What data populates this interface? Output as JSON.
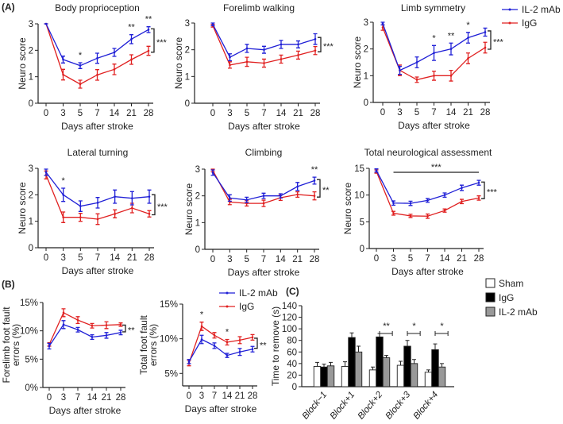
{
  "panel_labels": [
    "(A)",
    "(B)",
    "(C)"
  ],
  "colors": {
    "il2": "#1f1fd6",
    "igg": "#e02020",
    "sham": "#ffffff",
    "igg_bar": "#000000",
    "il2_bar": "#999999"
  },
  "chart_data": [
    {
      "type": "line",
      "panel": "A",
      "title": "Body proprioception",
      "xlabel": "Days after stroke",
      "ylabel": "Neuro score",
      "categories": [
        "0",
        "3",
        "5",
        "7",
        "14",
        "21",
        "28"
      ],
      "ylim": [
        0,
        3
      ],
      "yticks": [
        "0",
        "1",
        "2",
        "3"
      ],
      "series": [
        {
          "name": "IL-2 mAb",
          "values": [
            3,
            1.65,
            1.42,
            1.7,
            1.92,
            2.42,
            2.78
          ],
          "err": [
            0,
            0.13,
            0.11,
            0.19,
            0.15,
            0.17,
            0.11
          ]
        },
        {
          "name": "IgG",
          "values": [
            3,
            1.08,
            0.72,
            1.07,
            1.28,
            1.65,
            1.98
          ],
          "err": [
            0,
            0.2,
            0.15,
            0.2,
            0.2,
            0.18,
            0.17
          ]
        }
      ],
      "stars": [
        {
          "at": "5",
          "text": "*"
        },
        {
          "at": "21",
          "text": "**"
        },
        {
          "at": "28",
          "text": "**"
        }
      ],
      "bracket": "***"
    },
    {
      "type": "line",
      "panel": "A",
      "title": "Forelimb walking",
      "xlabel": "Days after stroke",
      "ylabel": "Neuro score",
      "categories": [
        "0",
        "3",
        "5",
        "7",
        "14",
        "21",
        "28"
      ],
      "ylim": [
        0,
        3
      ],
      "yticks": [
        "0",
        "1",
        "2",
        "3"
      ],
      "series": [
        {
          "name": "IL-2 mAb",
          "values": [
            2.95,
            1.72,
            2.05,
            2.0,
            2.2,
            2.2,
            2.4
          ],
          "err": [
            0.05,
            0.13,
            0.15,
            0.13,
            0.15,
            0.13,
            0.2
          ]
        },
        {
          "name": "IgG",
          "values": [
            2.9,
            1.43,
            1.55,
            1.5,
            1.65,
            1.8,
            1.97
          ],
          "err": [
            0.05,
            0.12,
            0.17,
            0.15,
            0.15,
            0.15,
            0.15
          ]
        }
      ],
      "stars": [],
      "bracket": "***"
    },
    {
      "type": "line",
      "panel": "A",
      "title": "Limb symmetry",
      "xlabel": "Days after stroke",
      "ylabel": "Neuro score",
      "categories": [
        "0",
        "3",
        "5",
        "7",
        "14",
        "21",
        "28"
      ],
      "ylim": [
        0,
        3
      ],
      "yticks": [
        "0",
        "1",
        "2",
        "3"
      ],
      "series": [
        {
          "name": "IL-2 mAb",
          "values": [
            2.95,
            1.2,
            1.5,
            1.85,
            2.0,
            2.42,
            2.63
          ],
          "err": [
            0.05,
            0.15,
            0.2,
            0.28,
            0.22,
            0.2,
            0.15
          ]
        },
        {
          "name": "IgG",
          "values": [
            2.8,
            1.2,
            0.85,
            1.0,
            1.0,
            1.65,
            2.05
          ],
          "err": [
            0.1,
            0.2,
            0.1,
            0.17,
            0.2,
            0.2,
            0.2
          ]
        }
      ],
      "stars": [
        {
          "at": "7",
          "text": "*"
        },
        {
          "at": "14",
          "text": "**"
        },
        {
          "at": "21",
          "text": "*"
        }
      ],
      "bracket": "***"
    },
    {
      "type": "line",
      "panel": "A",
      "title": "Lateral turning",
      "xlabel": "Days after stroke",
      "ylabel": "Neuro score",
      "categories": [
        "0",
        "3",
        "5",
        "7",
        "14",
        "21",
        "28"
      ],
      "ylim": [
        0,
        3
      ],
      "yticks": [
        "0",
        "1",
        "2",
        "3"
      ],
      "series": [
        {
          "name": "IL-2 mAb",
          "values": [
            2.85,
            2.0,
            1.57,
            1.7,
            1.93,
            1.87,
            1.93
          ],
          "err": [
            0.12,
            0.25,
            0.2,
            0.2,
            0.25,
            0.25,
            0.25
          ]
        },
        {
          "name": "IgG",
          "values": [
            2.75,
            1.15,
            1.15,
            1.08,
            1.28,
            1.5,
            1.28
          ],
          "err": [
            0.15,
            0.2,
            0.15,
            0.2,
            0.15,
            0.18,
            0.12
          ]
        }
      ],
      "stars": [
        {
          "at": "3",
          "text": "*"
        }
      ],
      "bracket": "***"
    },
    {
      "type": "line",
      "panel": "A",
      "title": "Climbing",
      "xlabel": "Days after stroke",
      "ylabel": "Neuro score",
      "categories": [
        "0",
        "3",
        "5",
        "7",
        "14",
        "21",
        "28"
      ],
      "ylim": [
        0,
        3
      ],
      "yticks": [
        "0",
        "1",
        "2",
        "3"
      ],
      "series": [
        {
          "name": "IL-2 mAb",
          "values": [
            2.87,
            1.92,
            1.85,
            2.0,
            2.0,
            2.35,
            2.57
          ],
          "err": [
            0.1,
            0.12,
            0.1,
            0.1,
            0.08,
            0.15,
            0.13
          ]
        },
        {
          "name": "IgG",
          "values": [
            2.95,
            1.77,
            1.72,
            1.72,
            1.93,
            2.05,
            2.0
          ],
          "err": [
            0.05,
            0.1,
            0.1,
            0.12,
            0.1,
            0.1,
            0.15
          ]
        }
      ],
      "stars": [
        {
          "at": "28",
          "text": "**"
        }
      ],
      "bracket": "**"
    },
    {
      "type": "line",
      "panel": "A",
      "title": "Total neurological assessment",
      "xlabel": "Days after stroke",
      "ylabel": "Neuro score",
      "categories": [
        "0",
        "3",
        "5",
        "7",
        "14",
        "21",
        "28"
      ],
      "ylim": [
        0,
        15
      ],
      "yticks": [
        "0",
        "5",
        "10",
        "15"
      ],
      "series": [
        {
          "name": "IL-2 mAb",
          "values": [
            14.6,
            8.5,
            8.45,
            9.0,
            10.0,
            11.35,
            12.3
          ],
          "err": [
            0.3,
            0.4,
            0.4,
            0.35,
            0.4,
            0.5,
            0.45
          ]
        },
        {
          "name": "IgG",
          "values": [
            14.4,
            6.6,
            6.1,
            6.05,
            7.1,
            8.8,
            9.45
          ],
          "err": [
            0.3,
            0.35,
            0.3,
            0.4,
            0.3,
            0.4,
            0.4
          ]
        }
      ],
      "stars": [],
      "bracket": "***",
      "span_bar": {
        "from": "3",
        "to": "28",
        "text": "***"
      }
    },
    {
      "type": "line",
      "panel": "B",
      "title": "",
      "xlabel": "Days after stroke",
      "ylabel": "Forelimb foot fault errors (%)",
      "categories": [
        "0",
        "3",
        "7",
        "14",
        "21",
        "28"
      ],
      "ylim": [
        0,
        15
      ],
      "yticks": [
        "0%",
        "5%",
        "10%",
        "15%"
      ],
      "ytickvals": [
        0,
        5,
        10,
        15
      ],
      "series": [
        {
          "name": "IL-2 mAb",
          "values": [
            7.3,
            11.1,
            10.2,
            8.9,
            9.2,
            9.7
          ],
          "err": [
            0.5,
            0.7,
            0.4,
            0.4,
            0.5,
            0.4
          ]
        },
        {
          "name": "IgG",
          "values": [
            7.6,
            13.2,
            11.9,
            10.9,
            11.0,
            11.1
          ],
          "err": [
            0.3,
            0.7,
            0.6,
            0.4,
            0.6,
            0.3
          ]
        }
      ],
      "stars": [],
      "bracket": "**"
    },
    {
      "type": "line",
      "panel": "B",
      "title": "",
      "xlabel": "Days after stroke",
      "ylabel": "Total foot fault errors (%)",
      "categories": [
        "0",
        "3",
        "7",
        "14",
        "21",
        "28"
      ],
      "ylim": [
        3.2,
        15
      ],
      "yticks": [
        "5%",
        "10%",
        "15%"
      ],
      "ytickvals": [
        5,
        10,
        15
      ],
      "series": [
        {
          "name": "IL-2 mAb",
          "values": [
            6.7,
            9.9,
            9.0,
            7.6,
            8.1,
            8.5
          ],
          "err": [
            0.3,
            0.6,
            0.4,
            0.3,
            0.5,
            0.4
          ]
        },
        {
          "name": "IgG",
          "values": [
            6.5,
            11.8,
            10.5,
            9.5,
            9.8,
            10.2
          ],
          "err": [
            0.4,
            0.6,
            0.4,
            0.4,
            0.5,
            0.4
          ]
        }
      ],
      "stars": [
        {
          "at": "3",
          "text": "*"
        },
        {
          "at": "14",
          "text": "*"
        }
      ],
      "bracket": "**"
    },
    {
      "type": "bar",
      "panel": "C",
      "title": "",
      "xlabel": "",
      "ylabel": "Time to remove (s)",
      "categories": [
        "Block−1",
        "Block+1",
        "Block+2",
        "Block+3",
        "Block+4"
      ],
      "ylim": [
        0,
        140
      ],
      "yticks": [
        "0",
        "20",
        "40",
        "60",
        "80",
        "100",
        "120",
        "140"
      ],
      "series": [
        {
          "name": "Sham",
          "values": [
            35,
            35,
            29,
            37,
            25
          ],
          "err": [
            7,
            8,
            5,
            7,
            4
          ]
        },
        {
          "name": "IgG",
          "values": [
            34,
            85,
            86,
            70,
            64
          ],
          "err": [
            5,
            8,
            6,
            10,
            10
          ]
        },
        {
          "name": "IL-2 mAb",
          "values": [
            36,
            60,
            50,
            40,
            34
          ],
          "err": [
            6,
            10,
            4,
            7,
            6
          ]
        }
      ],
      "stars": [
        {
          "at": "Block+2",
          "text": "**"
        },
        {
          "at": "Block+3",
          "text": "*"
        },
        {
          "at": "Block+4",
          "text": "*"
        }
      ]
    }
  ],
  "legends": {
    "A": [
      "IL-2 mAb",
      "IgG"
    ],
    "B": [
      "IL-2 mAb",
      "IgG"
    ],
    "C": [
      "Sham",
      "IgG",
      "IL-2 mAb"
    ]
  }
}
